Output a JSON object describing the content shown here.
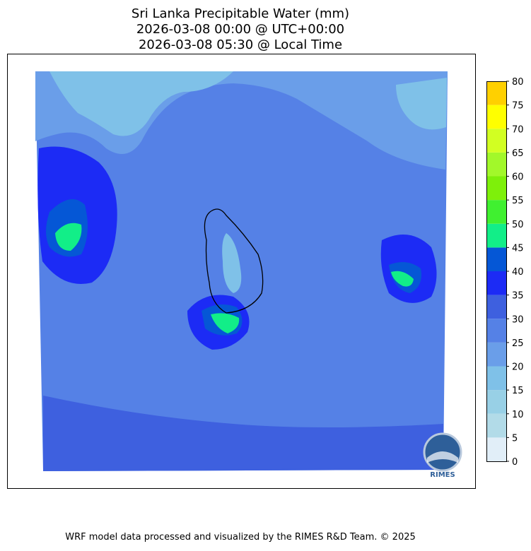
{
  "header": {
    "title": [
      "Sri Lanka Precipitable Water (mm)",
      "2026-03-08 00:00 @ UTC+00:00",
      "2026-03-08 05:30 @ Local Time"
    ]
  },
  "colorbar": {
    "lim": [
      0,
      80
    ],
    "ticks": [
      0,
      5,
      10,
      15,
      20,
      25,
      30,
      35,
      40,
      45,
      50,
      55,
      60,
      65,
      70,
      75,
      80
    ],
    "colors": [
      "#e1eef8",
      "#b2dbe8",
      "#98d0e6",
      "#7fc1e8",
      "#6a9ee9",
      "#5581e6",
      "#3e60df",
      "#1c2bf5",
      "#0557d6",
      "#12ee88",
      "#40f030",
      "#7ef00a",
      "#a2f82a",
      "#d2ff22",
      "#ffff00",
      "#ffd000"
    ]
  },
  "logo": {
    "text": "RIMES"
  },
  "footer": "WRF model data processed and visualized by the RIMES R&D Team. © 2025"
}
